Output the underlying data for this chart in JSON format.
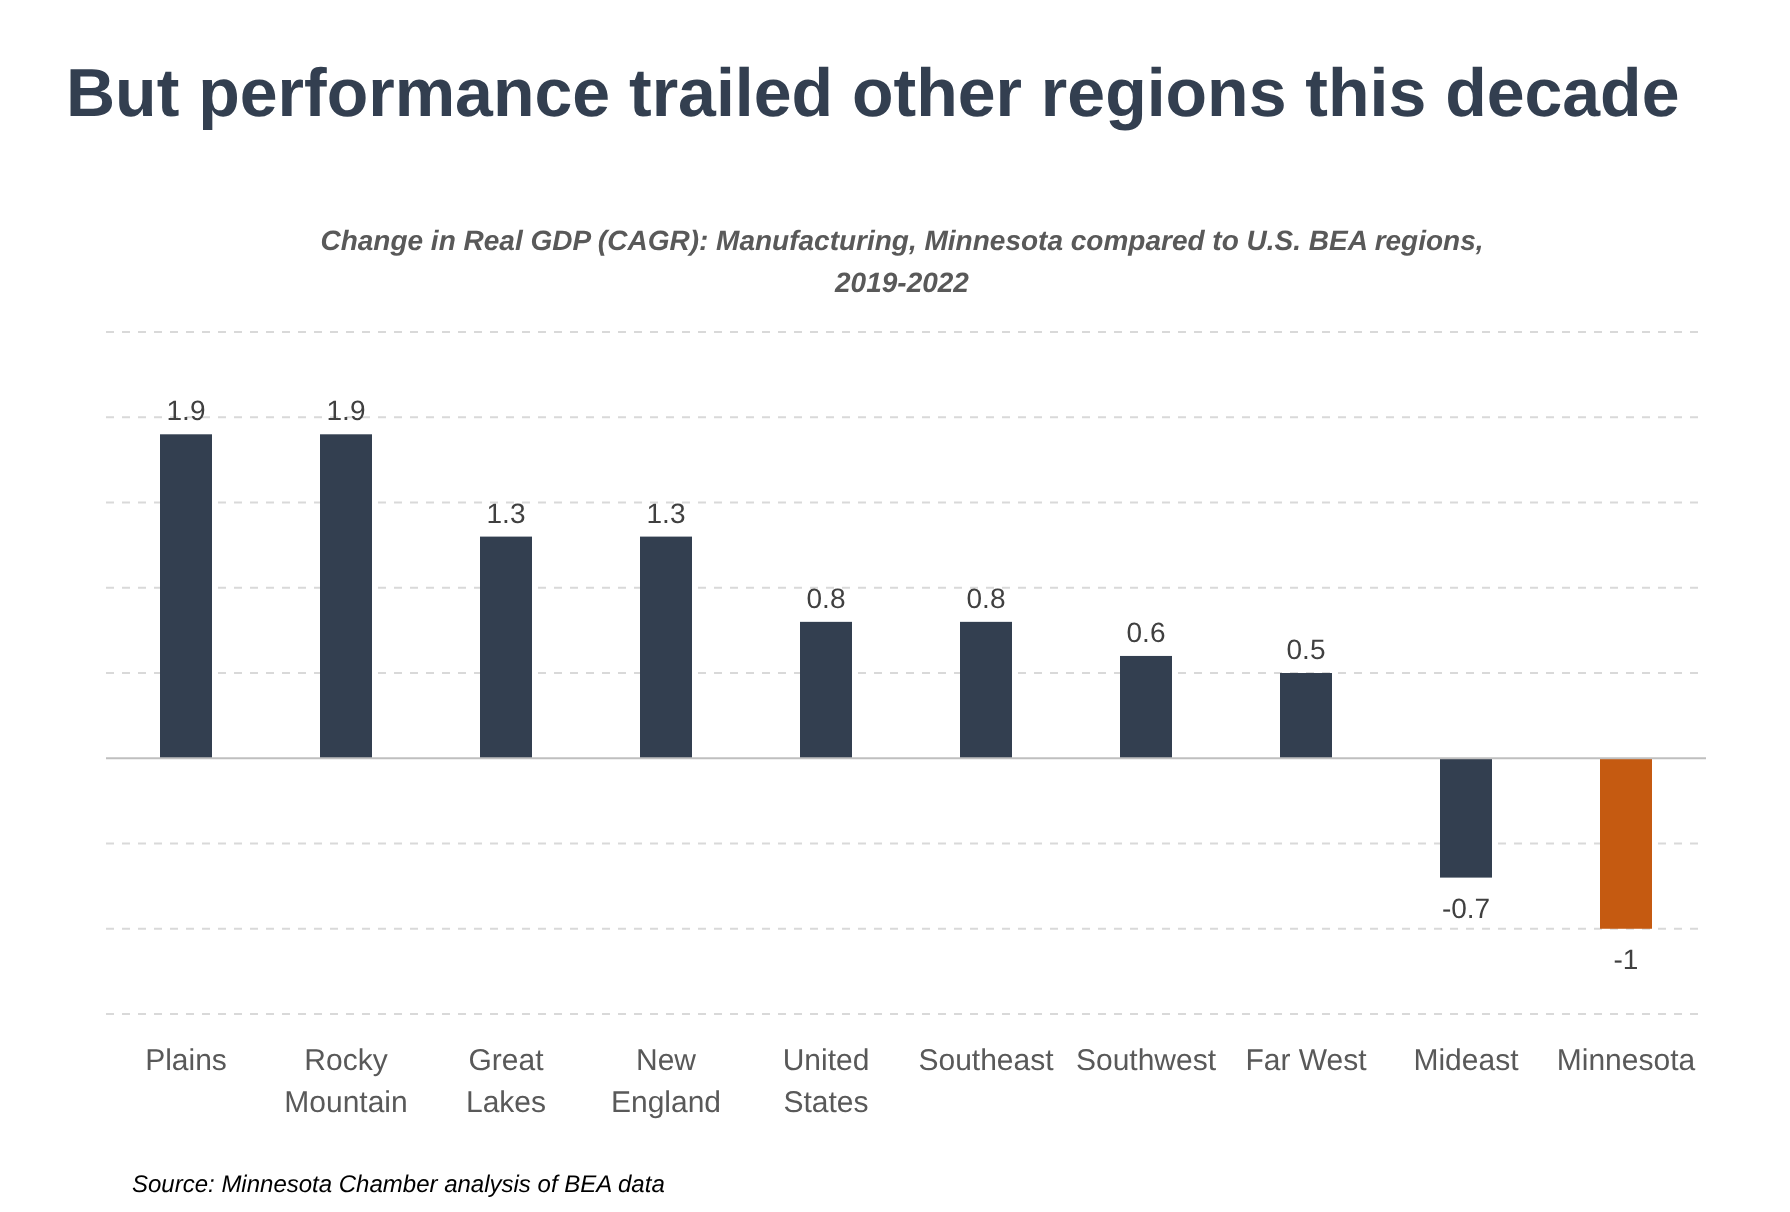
{
  "chart_data": {
    "type": "bar",
    "title": "But performance trailed other regions this decade",
    "subtitle": "Change in Real GDP (CAGR): Manufacturing, Minnesota compared to U.S. BEA regions, 2019-2022",
    "categories": [
      "Plains",
      "Rocky Mountain",
      "Great Lakes",
      "New England",
      "United States",
      "Southeast",
      "Southwest",
      "Far West",
      "Mideast",
      "Minnesota"
    ],
    "values": [
      1.9,
      1.9,
      1.3,
      1.3,
      0.8,
      0.8,
      0.6,
      0.5,
      -0.7,
      -1
    ],
    "colors": [
      "#333f50",
      "#333f50",
      "#333f50",
      "#333f50",
      "#333f50",
      "#333f50",
      "#333f50",
      "#333f50",
      "#333f50",
      "#c55a11"
    ],
    "ylim": [
      -1.5,
      2.5
    ],
    "yticks": [
      {
        "value": -1.5,
        "label": null
      },
      {
        "value": -1,
        "label": null
      },
      {
        "value": -0.5,
        "label": null
      },
      {
        "value": 0,
        "label": null
      },
      {
        "value": 0.5,
        "label": null
      },
      {
        "value": 1,
        "label": null
      },
      {
        "value": 1.5,
        "label": null
      },
      {
        "value": 2,
        "label": null
      },
      {
        "value": 2.5,
        "label": null
      }
    ],
    "grid": "y",
    "tick_labels": "x",
    "data_labels": true,
    "annotations": [
      "Source: Minnesota Chamber analysis of BEA data"
    ]
  }
}
